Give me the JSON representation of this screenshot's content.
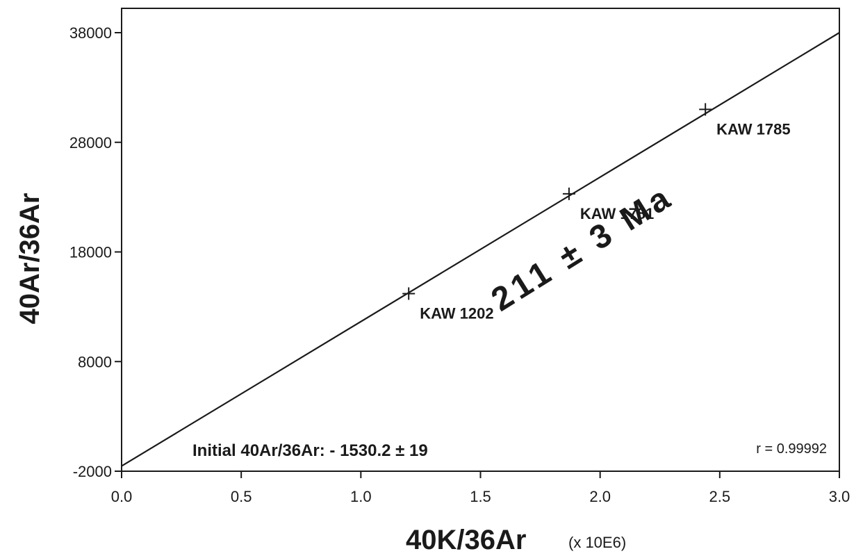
{
  "chart_data": {
    "type": "scatter",
    "xlabel": "40K/36Ar",
    "xlabel_unit": "(x 10E6)",
    "ylabel": "40Ar/36Ar",
    "xlim": [
      0.0,
      3.0
    ],
    "ylim": [
      -2000,
      40000
    ],
    "x_ticks": [
      0.0,
      0.5,
      1.0,
      1.5,
      2.0,
      2.5,
      3.0
    ],
    "x_tick_labels": [
      "0.0",
      "0.5",
      "1.0",
      "1.5",
      "2.0",
      "2.5",
      "3.0"
    ],
    "y_ticks": [
      -2000,
      8000,
      18000,
      28000,
      38000
    ],
    "y_tick_labels": [
      "-2000",
      "8000",
      "18000",
      "28000",
      "38000"
    ],
    "grid": false,
    "series": [
      {
        "points": [
          {
            "x": 1.2,
            "y": 14200,
            "label": "KAW 1202"
          },
          {
            "x": 1.87,
            "y": 23300,
            "label": "KAW 1781"
          },
          {
            "x": 2.44,
            "y": 31000,
            "label": "KAW 1785"
          }
        ]
      }
    ],
    "fit_line": {
      "x": [
        0.0,
        3.0
      ],
      "y": [
        -1530.2,
        38000
      ]
    },
    "annotations": {
      "age": "211 ± 3 Ma",
      "initial_ratio": "Initial 40Ar/36Ar: - 1530.2 ± 19",
      "correlation": "r = 0.99992"
    }
  }
}
